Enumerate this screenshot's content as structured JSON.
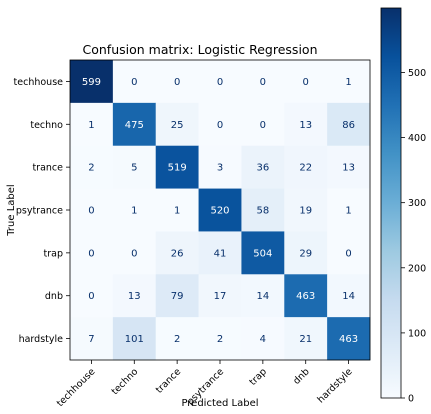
{
  "chart_data": {
    "type": "heatmap",
    "title": "Confusion matrix: Logistic Regression",
    "xlabel": "Predicted Label",
    "ylabel": "True Label",
    "x_categories": [
      "techhouse",
      "techno",
      "trance",
      "psytrance",
      "trap",
      "dnb",
      "hardstyle"
    ],
    "y_categories": [
      "techhouse",
      "techno",
      "trance",
      "psytrance",
      "trap",
      "dnb",
      "hardstyle"
    ],
    "matrix": [
      [
        599,
        0,
        0,
        0,
        0,
        0,
        1
      ],
      [
        1,
        475,
        25,
        0,
        0,
        13,
        86
      ],
      [
        2,
        5,
        519,
        3,
        36,
        22,
        13
      ],
      [
        0,
        1,
        1,
        520,
        58,
        19,
        1
      ],
      [
        0,
        0,
        26,
        41,
        504,
        29,
        0
      ],
      [
        0,
        13,
        79,
        17,
        14,
        463,
        14
      ],
      [
        7,
        101,
        2,
        2,
        4,
        21,
        463
      ]
    ],
    "colormap": "Blues",
    "colorbar": {
      "vmin": 0,
      "vmax": 599,
      "ticks": [
        0,
        100,
        200,
        300,
        400,
        500
      ]
    },
    "grid": false
  }
}
